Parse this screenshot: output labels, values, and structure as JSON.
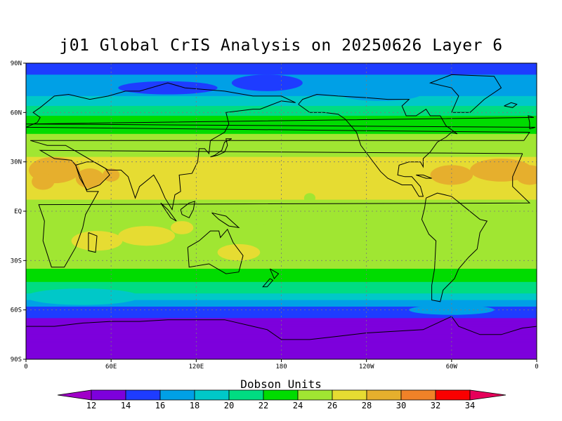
{
  "title": "j01 Global CrIS Analysis on 20250626 Layer 6",
  "colorbar": {
    "label": "Dobson Units",
    "levels": [
      "12",
      "14",
      "16",
      "18",
      "20",
      "22",
      "24",
      "26",
      "28",
      "30",
      "32",
      "34"
    ],
    "colors": [
      "#a000c8",
      "#7d00dc",
      "#1e3cff",
      "#00a0e6",
      "#00c8c8",
      "#00dc82",
      "#00dc00",
      "#a0e632",
      "#e6dc32",
      "#e6af2d",
      "#f08228",
      "#fa0000",
      "#e6005a"
    ]
  },
  "axes": {
    "lat_labels": [
      "90N",
      "60N",
      "30N",
      "EQ",
      "30S",
      "60S",
      "90S"
    ],
    "lon_labels": [
      "0",
      "60E",
      "120E",
      "180",
      "120W",
      "60W",
      "0"
    ]
  },
  "chart_data": {
    "type": "heatmap",
    "title": "j01 Global CrIS Analysis on 20250626 Layer 6",
    "units": "Dobson Units",
    "lon_range": [
      0,
      360
    ],
    "lat_range": [
      -90,
      90
    ],
    "zonal_profile": [
      {
        "lat": 90,
        "value": 15
      },
      {
        "lat": 80,
        "value": 16.5
      },
      {
        "lat": 70,
        "value": 18
      },
      {
        "lat": 60,
        "value": 21.5
      },
      {
        "lat": 50,
        "value": 23.5
      },
      {
        "lat": 40,
        "value": 25
      },
      {
        "lat": 30,
        "value": 26.5
      },
      {
        "lat": 20,
        "value": 27
      },
      {
        "lat": 10,
        "value": 26.5
      },
      {
        "lat": 0,
        "value": 25
      },
      {
        "lat": -10,
        "value": 25.5
      },
      {
        "lat": -20,
        "value": 26
      },
      {
        "lat": -30,
        "value": 25
      },
      {
        "lat": -40,
        "value": 23
      },
      {
        "lat": -50,
        "value": 20
      },
      {
        "lat": -60,
        "value": 15
      },
      {
        "lat": -70,
        "value": 13
      },
      {
        "lat": -80,
        "value": 12.5
      },
      {
        "lat": -90,
        "value": 12
      }
    ],
    "grid": true
  }
}
